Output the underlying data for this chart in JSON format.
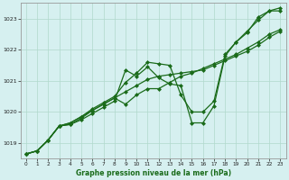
{
  "title": "",
  "xlabel": "Graphe pression niveau de la mer (hPa)",
  "bg_color": "#d6f0f0",
  "grid_color": "#b0d8cc",
  "line_color": "#1a6b1a",
  "marker": "D",
  "markersize": 2.0,
  "linewidth": 0.9,
  "ylim": [
    1018.5,
    1023.5
  ],
  "xlim": [
    -0.5,
    23.5
  ],
  "yticks": [
    1019,
    1020,
    1021,
    1022,
    1023
  ],
  "xticks": [
    0,
    1,
    2,
    3,
    4,
    5,
    6,
    7,
    8,
    9,
    10,
    11,
    12,
    13,
    14,
    15,
    16,
    17,
    18,
    19,
    20,
    21,
    22,
    23
  ],
  "series": [
    [
      1018.65,
      1018.75,
      1019.1,
      1019.55,
      1019.6,
      1019.75,
      1019.95,
      1020.15,
      1020.35,
      1021.35,
      1021.15,
      1021.45,
      1021.1,
      1020.9,
      1020.85,
      1019.65,
      1019.65,
      1020.2,
      1021.8,
      1022.25,
      1022.55,
      1023.05,
      1023.25,
      1023.25
    ],
    [
      1018.65,
      1018.75,
      1019.1,
      1019.55,
      1019.6,
      1019.8,
      1020.05,
      1020.25,
      1020.45,
      1020.65,
      1020.85,
      1021.05,
      1021.15,
      1021.2,
      1021.25,
      1021.3,
      1021.35,
      1021.5,
      1021.65,
      1021.8,
      1021.95,
      1022.15,
      1022.4,
      1022.6
    ],
    [
      1018.65,
      1018.75,
      1019.1,
      1019.55,
      1019.65,
      1019.85,
      1020.1,
      1020.3,
      1020.5,
      1020.95,
      1021.25,
      1021.6,
      1021.55,
      1021.5,
      1020.55,
      1020.0,
      1020.0,
      1020.35,
      1021.85,
      1022.25,
      1022.6,
      1022.95,
      1023.25,
      1023.35
    ],
    [
      1018.65,
      1018.75,
      1019.1,
      1019.55,
      1019.65,
      1019.85,
      1020.05,
      1020.25,
      1020.45,
      1020.25,
      1020.55,
      1020.75,
      1020.75,
      1020.95,
      1021.15,
      1021.25,
      1021.4,
      1021.55,
      1021.7,
      1021.85,
      1022.05,
      1022.25,
      1022.5,
      1022.65
    ]
  ]
}
